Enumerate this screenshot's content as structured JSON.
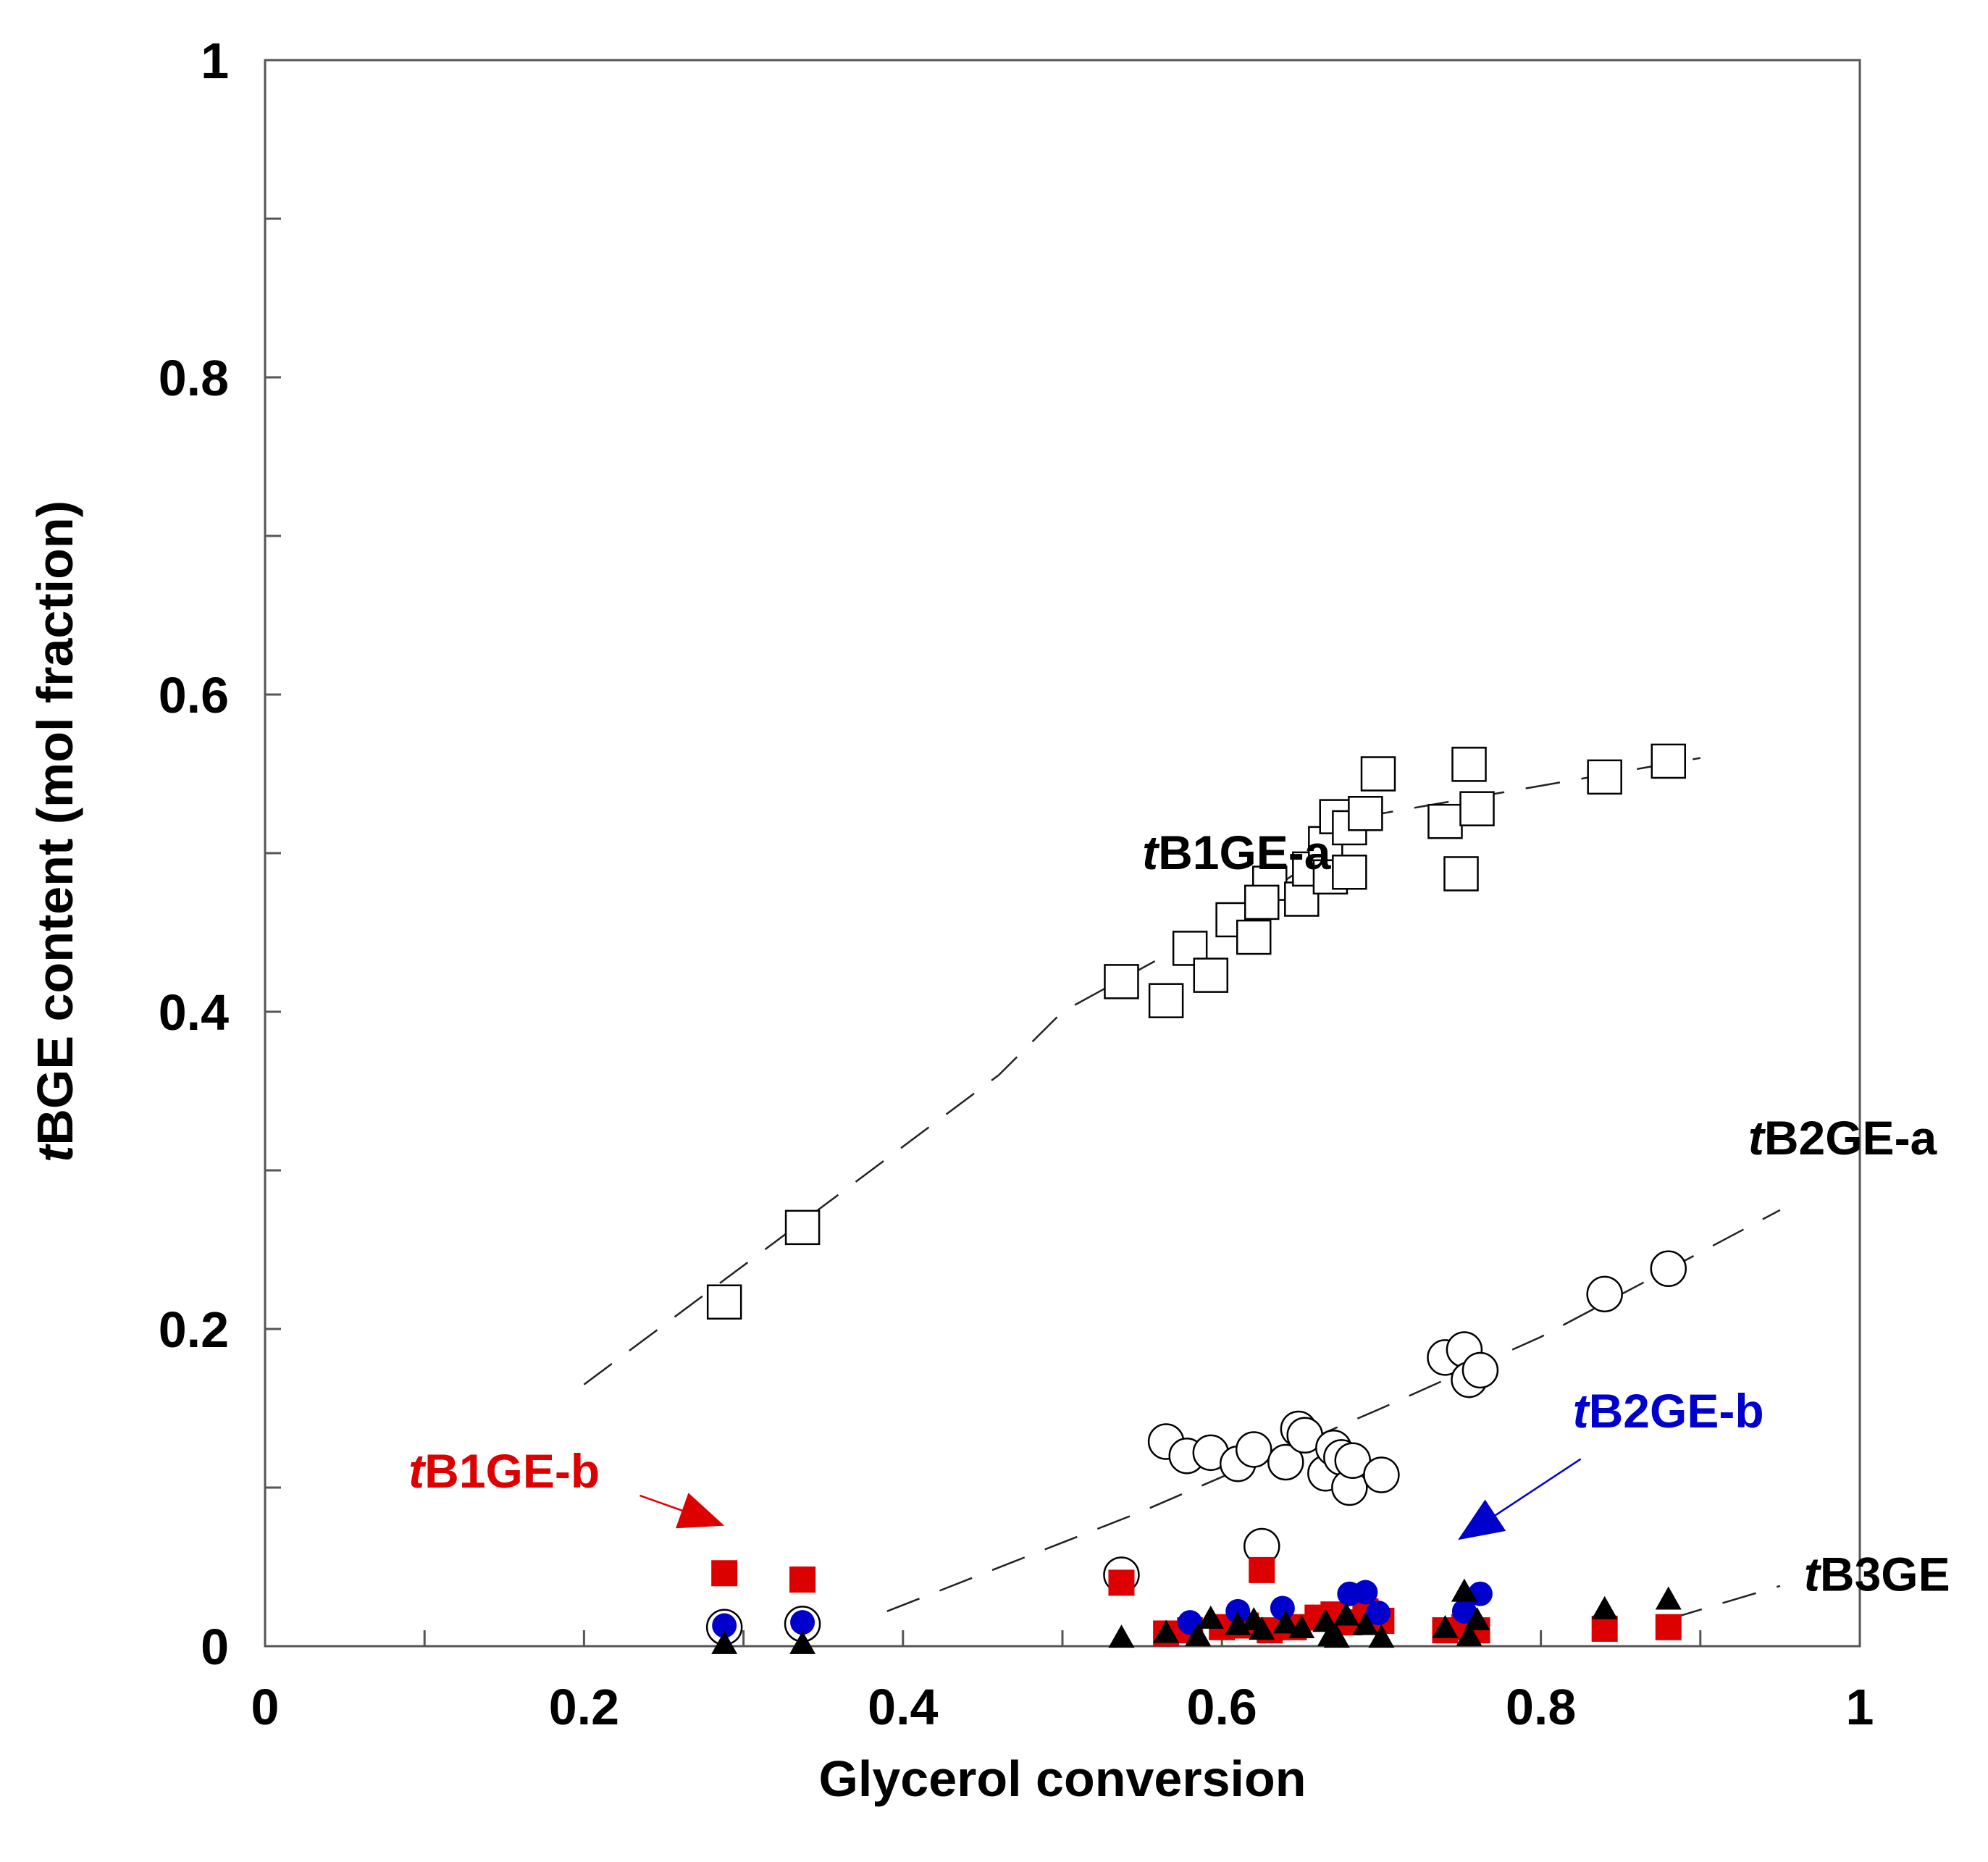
{
  "chart_data": {
    "type": "scatter",
    "xlabel": "Glycerol conversion",
    "ylabel_italic": "t",
    "ylabel_rest": "BGE content (mol fraction)",
    "xlim": [
      0,
      1
    ],
    "ylim": [
      0,
      1
    ],
    "x_ticks": [
      "0",
      "0.2",
      "0.4",
      "0.6",
      "0.8",
      "1"
    ],
    "x_tick_values": [
      0,
      0.2,
      0.4,
      0.6,
      0.8,
      1
    ],
    "y_ticks": [
      "0",
      "0.2",
      "0.4",
      "0.6",
      "0.8",
      "1"
    ],
    "y_tick_values": [
      0,
      0.2,
      0.4,
      0.6,
      0.8,
      1
    ],
    "minor_step": 0.1,
    "grid": false,
    "legend": "none",
    "series": [
      {
        "key": "tB1GE-a",
        "label_italic": "t",
        "label_rest": "B1GE-a",
        "label_color": "#000000",
        "marker": "open-square",
        "color": "#000000",
        "label_at": [
          0.55,
          0.49
        ],
        "trend": [
          [
            0.2,
            0.165
          ],
          [
            0.46,
            0.36
          ],
          [
            0.5,
            0.4
          ],
          [
            0.6,
            0.455
          ],
          [
            0.65,
            0.49
          ],
          [
            0.7,
            0.525
          ],
          [
            0.9,
            0.56
          ]
        ],
        "points": [
          [
            0.288,
            0.217
          ],
          [
            0.337,
            0.264
          ],
          [
            0.537,
            0.419
          ],
          [
            0.565,
            0.407
          ],
          [
            0.58,
            0.44
          ],
          [
            0.593,
            0.423
          ],
          [
            0.607,
            0.458
          ],
          [
            0.62,
            0.447
          ],
          [
            0.63,
            0.481
          ],
          [
            0.625,
            0.469
          ],
          [
            0.65,
            0.471
          ],
          [
            0.655,
            0.49
          ],
          [
            0.665,
            0.506
          ],
          [
            0.668,
            0.485
          ],
          [
            0.672,
            0.523
          ],
          [
            0.68,
            0.488
          ],
          [
            0.68,
            0.516
          ],
          [
            0.69,
            0.525
          ],
          [
            0.698,
            0.55
          ],
          [
            0.74,
            0.52
          ],
          [
            0.75,
            0.487
          ],
          [
            0.755,
            0.556
          ],
          [
            0.76,
            0.528
          ],
          [
            0.84,
            0.548
          ],
          [
            0.88,
            0.558
          ]
        ]
      },
      {
        "key": "tB2GE-a",
        "label_italic": "t",
        "label_rest": "B2GE-a",
        "label_color": "#000000",
        "marker": "open-circle",
        "color": "#000000",
        "label_at": [
          0.93,
          0.31
        ],
        "trend": [
          [
            0.39,
            0.022
          ],
          [
            0.55,
            0.085
          ],
          [
            0.7,
            0.15
          ],
          [
            0.8,
            0.195
          ],
          [
            0.95,
            0.275
          ]
        ],
        "points": [
          [
            0.288,
            0.012
          ],
          [
            0.337,
            0.014
          ],
          [
            0.537,
            0.045
          ],
          [
            0.565,
            0.129
          ],
          [
            0.578,
            0.12
          ],
          [
            0.593,
            0.122
          ],
          [
            0.61,
            0.115
          ],
          [
            0.62,
            0.124
          ],
          [
            0.625,
            0.063
          ],
          [
            0.64,
            0.116
          ],
          [
            0.648,
            0.137
          ],
          [
            0.652,
            0.133
          ],
          [
            0.665,
            0.109
          ],
          [
            0.67,
            0.125
          ],
          [
            0.675,
            0.119
          ],
          [
            0.68,
            0.1
          ],
          [
            0.682,
            0.117
          ],
          [
            0.7,
            0.108
          ],
          [
            0.74,
            0.182
          ],
          [
            0.752,
            0.187
          ],
          [
            0.755,
            0.168
          ],
          [
            0.762,
            0.174
          ],
          [
            0.84,
            0.222
          ],
          [
            0.88,
            0.238
          ]
        ]
      },
      {
        "key": "tB1GE-b",
        "label_italic": "t",
        "label_rest": "B1GE-b",
        "label_color": "#dd0000",
        "marker": "filled-square",
        "color": "#dd0000",
        "label_at": [
          0.09,
          0.1
        ],
        "arrow": [
          [
            0.235,
            0.095
          ],
          [
            0.288,
            0.076
          ]
        ],
        "points": [
          [
            0.288,
            0.046
          ],
          [
            0.337,
            0.042
          ],
          [
            0.537,
            0.04
          ],
          [
            0.565,
            0.008
          ],
          [
            0.58,
            0.01
          ],
          [
            0.6,
            0.012
          ],
          [
            0.615,
            0.013
          ],
          [
            0.625,
            0.048
          ],
          [
            0.63,
            0.01
          ],
          [
            0.645,
            0.012
          ],
          [
            0.66,
            0.018
          ],
          [
            0.67,
            0.02
          ],
          [
            0.68,
            0.015
          ],
          [
            0.69,
            0.022
          ],
          [
            0.7,
            0.016
          ],
          [
            0.74,
            0.01
          ],
          [
            0.752,
            0.012
          ],
          [
            0.76,
            0.01
          ],
          [
            0.84,
            0.011
          ],
          [
            0.88,
            0.012
          ]
        ]
      },
      {
        "key": "tB2GE-b",
        "label_italic": "t",
        "label_rest": "B2GE-b",
        "label_color": "#0000cc",
        "marker": "filled-circle",
        "color": "#0000cc",
        "label_at": [
          0.82,
          0.138
        ],
        "arrow": [
          [
            0.825,
            0.118
          ],
          [
            0.748,
            0.067
          ]
        ],
        "points": [
          [
            0.288,
            0.013
          ],
          [
            0.337,
            0.015
          ],
          [
            0.58,
            0.015
          ],
          [
            0.61,
            0.022
          ],
          [
            0.638,
            0.024
          ],
          [
            0.68,
            0.033
          ],
          [
            0.69,
            0.034
          ],
          [
            0.698,
            0.021
          ],
          [
            0.752,
            0.022
          ],
          [
            0.762,
            0.033
          ]
        ]
      },
      {
        "key": "tB3GE",
        "label_italic": "t",
        "label_rest": "B3GE",
        "label_color": "#000000",
        "marker": "filled-triangle",
        "color": "#000000",
        "label_at": [
          0.965,
          0.035
        ],
        "trend": [
          [
            0.88,
            0.017
          ],
          [
            0.95,
            0.038
          ]
        ],
        "points": [
          [
            0.288,
            0.0
          ],
          [
            0.337,
            0.0
          ],
          [
            0.537,
            0.004
          ],
          [
            0.565,
            0.007
          ],
          [
            0.585,
            0.005
          ],
          [
            0.593,
            0.016
          ],
          [
            0.61,
            0.012
          ],
          [
            0.62,
            0.015
          ],
          [
            0.625,
            0.009
          ],
          [
            0.64,
            0.013
          ],
          [
            0.65,
            0.01
          ],
          [
            0.665,
            0.014
          ],
          [
            0.668,
            0.005
          ],
          [
            0.672,
            0.004
          ],
          [
            0.678,
            0.018
          ],
          [
            0.69,
            0.012
          ],
          [
            0.7,
            0.004
          ],
          [
            0.74,
            0.01
          ],
          [
            0.752,
            0.033
          ],
          [
            0.755,
            0.005
          ],
          [
            0.76,
            0.015
          ],
          [
            0.84,
            0.022
          ],
          [
            0.88,
            0.028
          ]
        ]
      }
    ]
  }
}
